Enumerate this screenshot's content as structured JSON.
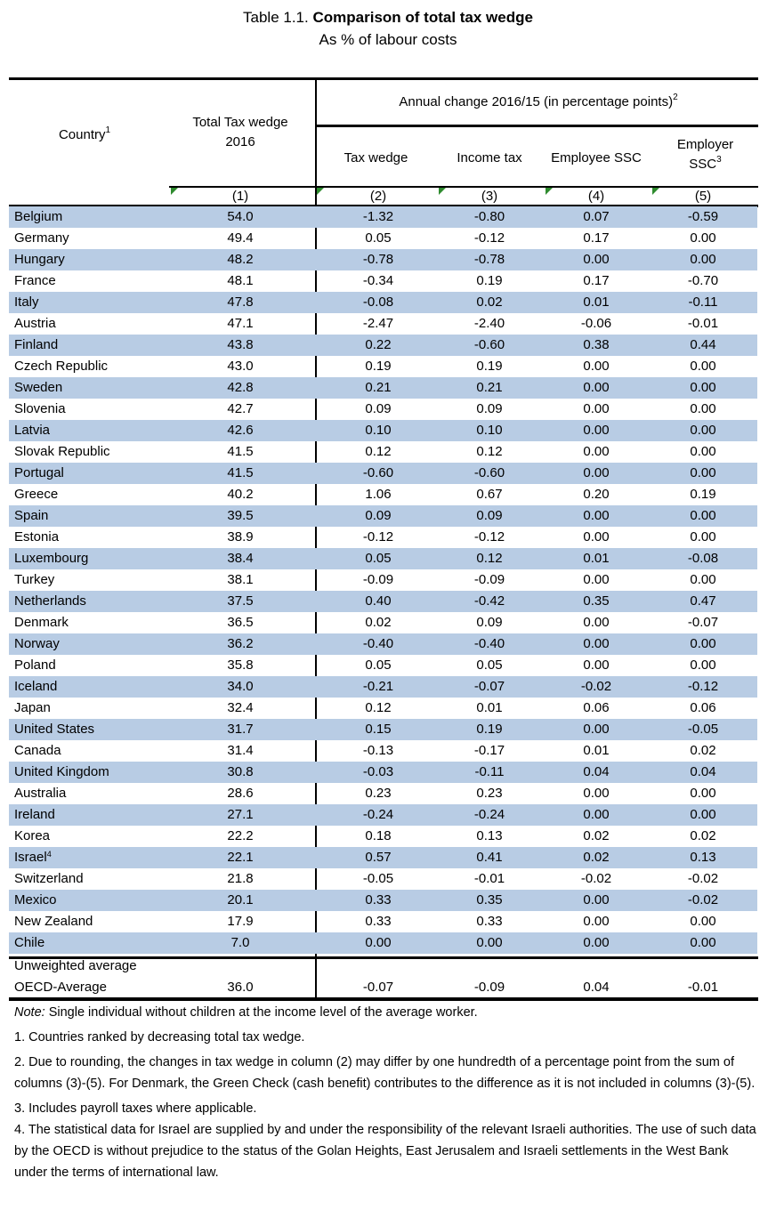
{
  "title": {
    "prefix": "Table 1.1.",
    "bold": "Comparison of  total tax wedge",
    "subtitle": "As % of labour costs"
  },
  "header": {
    "country": "Country",
    "country_sup": "1",
    "total_line1": "Total Tax wedge",
    "total_line2": "2016",
    "annual_change": "Annual change 2016/15 (in percentage points)",
    "annual_change_sup": "2",
    "tax_wedge": "Tax wedge",
    "income_tax": "Income tax",
    "employee_ssc": "Employee SSC",
    "employer_line1": "Employer",
    "employer_line2": "SSC",
    "employer_sup": "3",
    "col_numbers": [
      "(1)",
      "(2)",
      "(3)",
      "(4)",
      "(5)"
    ]
  },
  "rows": [
    {
      "country": "Belgium",
      "sup": "",
      "total": "54.0",
      "tax_wedge": "-1.32",
      "income_tax": "-0.80",
      "employee_ssc": "0.07",
      "employer_ssc": "-0.59"
    },
    {
      "country": "Germany",
      "sup": "",
      "total": "49.4",
      "tax_wedge": "0.05",
      "income_tax": "-0.12",
      "employee_ssc": "0.17",
      "employer_ssc": "0.00"
    },
    {
      "country": "Hungary",
      "sup": "",
      "total": "48.2",
      "tax_wedge": "-0.78",
      "income_tax": "-0.78",
      "employee_ssc": "0.00",
      "employer_ssc": "0.00"
    },
    {
      "country": "France",
      "sup": "",
      "total": "48.1",
      "tax_wedge": "-0.34",
      "income_tax": "0.19",
      "employee_ssc": "0.17",
      "employer_ssc": "-0.70"
    },
    {
      "country": "Italy",
      "sup": "",
      "total": "47.8",
      "tax_wedge": "-0.08",
      "income_tax": "0.02",
      "employee_ssc": "0.01",
      "employer_ssc": "-0.11"
    },
    {
      "country": "Austria",
      "sup": "",
      "total": "47.1",
      "tax_wedge": "-2.47",
      "income_tax": "-2.40",
      "employee_ssc": "-0.06",
      "employer_ssc": "-0.01"
    },
    {
      "country": "Finland",
      "sup": "",
      "total": "43.8",
      "tax_wedge": "0.22",
      "income_tax": "-0.60",
      "employee_ssc": "0.38",
      "employer_ssc": "0.44"
    },
    {
      "country": "Czech Republic",
      "sup": "",
      "total": "43.0",
      "tax_wedge": "0.19",
      "income_tax": "0.19",
      "employee_ssc": "0.00",
      "employer_ssc": "0.00"
    },
    {
      "country": "Sweden",
      "sup": "",
      "total": "42.8",
      "tax_wedge": "0.21",
      "income_tax": "0.21",
      "employee_ssc": "0.00",
      "employer_ssc": "0.00"
    },
    {
      "country": "Slovenia",
      "sup": "",
      "total": "42.7",
      "tax_wedge": "0.09",
      "income_tax": "0.09",
      "employee_ssc": "0.00",
      "employer_ssc": "0.00"
    },
    {
      "country": "Latvia",
      "sup": "",
      "total": "42.6",
      "tax_wedge": "0.10",
      "income_tax": "0.10",
      "employee_ssc": "0.00",
      "employer_ssc": "0.00"
    },
    {
      "country": "Slovak Republic",
      "sup": "",
      "total": "41.5",
      "tax_wedge": "0.12",
      "income_tax": "0.12",
      "employee_ssc": "0.00",
      "employer_ssc": "0.00"
    },
    {
      "country": "Portugal",
      "sup": "",
      "total": "41.5",
      "tax_wedge": "-0.60",
      "income_tax": "-0.60",
      "employee_ssc": "0.00",
      "employer_ssc": "0.00"
    },
    {
      "country": "Greece",
      "sup": "",
      "total": "40.2",
      "tax_wedge": "1.06",
      "income_tax": "0.67",
      "employee_ssc": "0.20",
      "employer_ssc": "0.19"
    },
    {
      "country": "Spain",
      "sup": "",
      "total": "39.5",
      "tax_wedge": "0.09",
      "income_tax": "0.09",
      "employee_ssc": "0.00",
      "employer_ssc": "0.00"
    },
    {
      "country": "Estonia",
      "sup": "",
      "total": "38.9",
      "tax_wedge": "-0.12",
      "income_tax": "-0.12",
      "employee_ssc": "0.00",
      "employer_ssc": "0.00"
    },
    {
      "country": "Luxembourg",
      "sup": "",
      "total": "38.4",
      "tax_wedge": "0.05",
      "income_tax": "0.12",
      "employee_ssc": "0.01",
      "employer_ssc": "-0.08"
    },
    {
      "country": "Turkey",
      "sup": "",
      "total": "38.1",
      "tax_wedge": "-0.09",
      "income_tax": "-0.09",
      "employee_ssc": "0.00",
      "employer_ssc": "0.00"
    },
    {
      "country": "Netherlands",
      "sup": "",
      "total": "37.5",
      "tax_wedge": "0.40",
      "income_tax": "-0.42",
      "employee_ssc": "0.35",
      "employer_ssc": "0.47"
    },
    {
      "country": "Denmark",
      "sup": "",
      "total": "36.5",
      "tax_wedge": "0.02",
      "income_tax": "0.09",
      "employee_ssc": "0.00",
      "employer_ssc": "-0.07"
    },
    {
      "country": "Norway",
      "sup": "",
      "total": "36.2",
      "tax_wedge": "-0.40",
      "income_tax": "-0.40",
      "employee_ssc": "0.00",
      "employer_ssc": "0.00"
    },
    {
      "country": "Poland",
      "sup": "",
      "total": "35.8",
      "tax_wedge": "0.05",
      "income_tax": "0.05",
      "employee_ssc": "0.00",
      "employer_ssc": "0.00"
    },
    {
      "country": "Iceland",
      "sup": "",
      "total": "34.0",
      "tax_wedge": "-0.21",
      "income_tax": "-0.07",
      "employee_ssc": "-0.02",
      "employer_ssc": "-0.12"
    },
    {
      "country": "Japan",
      "sup": "",
      "total": "32.4",
      "tax_wedge": "0.12",
      "income_tax": "0.01",
      "employee_ssc": "0.06",
      "employer_ssc": "0.06"
    },
    {
      "country": "United States",
      "sup": "",
      "total": "31.7",
      "tax_wedge": "0.15",
      "income_tax": "0.19",
      "employee_ssc": "0.00",
      "employer_ssc": "-0.05"
    },
    {
      "country": "Canada",
      "sup": "",
      "total": "31.4",
      "tax_wedge": "-0.13",
      "income_tax": "-0.17",
      "employee_ssc": "0.01",
      "employer_ssc": "0.02"
    },
    {
      "country": "United Kingdom",
      "sup": "",
      "total": "30.8",
      "tax_wedge": "-0.03",
      "income_tax": "-0.11",
      "employee_ssc": "0.04",
      "employer_ssc": "0.04"
    },
    {
      "country": "Australia",
      "sup": "",
      "total": "28.6",
      "tax_wedge": "0.23",
      "income_tax": "0.23",
      "employee_ssc": "0.00",
      "employer_ssc": "0.00"
    },
    {
      "country": "Ireland",
      "sup": "",
      "total": "27.1",
      "tax_wedge": "-0.24",
      "income_tax": "-0.24",
      "employee_ssc": "0.00",
      "employer_ssc": "0.00"
    },
    {
      "country": "Korea",
      "sup": "",
      "total": "22.2",
      "tax_wedge": "0.18",
      "income_tax": "0.13",
      "employee_ssc": "0.02",
      "employer_ssc": "0.02"
    },
    {
      "country": "Israel",
      "sup": "4",
      "total": "22.1",
      "tax_wedge": "0.57",
      "income_tax": "0.41",
      "employee_ssc": "0.02",
      "employer_ssc": "0.13"
    },
    {
      "country": "Switzerland",
      "sup": "",
      "total": "21.8",
      "tax_wedge": "-0.05",
      "income_tax": "-0.01",
      "employee_ssc": "-0.02",
      "employer_ssc": "-0.02"
    },
    {
      "country": "Mexico",
      "sup": "",
      "total": "20.1",
      "tax_wedge": "0.33",
      "income_tax": "0.35",
      "employee_ssc": "0.00",
      "employer_ssc": "-0.02"
    },
    {
      "country": "New Zealand",
      "sup": "",
      "total": "17.9",
      "tax_wedge": "0.33",
      "income_tax": "0.33",
      "employee_ssc": "0.00",
      "employer_ssc": "0.00"
    },
    {
      "country": "Chile",
      "sup": "",
      "total": "7.0",
      "tax_wedge": "0.00",
      "income_tax": "0.00",
      "employee_ssc": "0.00",
      "employer_ssc": "0.00"
    }
  ],
  "average": {
    "label_line1": "Unweighted average",
    "label_line2": "OECD-Average",
    "total": "36.0",
    "tax_wedge": "-0.07",
    "income_tax": "-0.09",
    "employee_ssc": "0.04",
    "employer_ssc": "-0.01"
  },
  "notes": {
    "note_label": "Note:",
    "note_text": " Single individual without children at the income level of the average worker.",
    "footnotes": [
      "1. Countries ranked by decreasing total tax wedge.",
      "2. Due to rounding, the changes in tax wedge in column (2) may differ by one hundredth of a percentage point from the sum of columns (3)-(5). For Denmark, the Green Check (cash benefit) contributes to the difference as it is not included in columns (3)-(5).",
      "3. Includes payroll taxes where applicable.",
      "4. The statistical data for Israel are supplied by and under the responsibility of the relevant Israeli authorities. The use of such data by the OECD is without prejudice to the status of the Golan Heights, East Jerusalem and Israeli settlements in the West Bank under the terms of international law."
    ]
  },
  "colors": {
    "row_shade": "#b8cce4",
    "marker": "#2e8b2e",
    "rule": "#000000"
  }
}
